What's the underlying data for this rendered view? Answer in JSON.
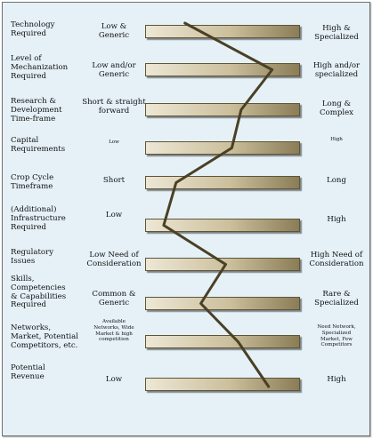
{
  "rows": [
    {
      "category": "Technology\nRequired",
      "low": "Low &\nGeneric",
      "high": "High &\nSpecialized",
      "level": 0.28
    },
    {
      "category": "Level of\nMechanization\nRequired",
      "low": "Low and/or\nGeneric",
      "high": "High and/or\nspecialized",
      "level": 0.82
    },
    {
      "category": "Research &\nDevelopment\nTime-frame",
      "low": "Short & straight\nforward",
      "high": "Long &\nComplex",
      "level": 0.62
    },
    {
      "category": "Capital\nRequirements",
      "low": "Low",
      "high": "High",
      "level": 0.56
    },
    {
      "category": "Crop Cycle\nTimeframe",
      "low": "Short",
      "high": "Long",
      "level": 0.2
    },
    {
      "category": "(Additional)\nInfrastructure\nRequired",
      "low": "Low",
      "high": "High",
      "level": 0.12
    },
    {
      "category": "Regulatory\nIssues",
      "low": "Low Need of\nConsideration",
      "high": "High Need of\nConsideration",
      "level": 0.52
    },
    {
      "category": "Skills,\nCompetencies\n& Capabilities\nRequired",
      "low": "Common &\nGeneric",
      "high": "Rare &\nSpecialized",
      "level": 0.36
    },
    {
      "category": "Networks,\nMarket, Potential\nCompetitors, etc.",
      "low": "Available\nNetworks, Wide\nMarket & high\ncompetition",
      "high": "Need Network,\nSpecialized\nMarket, Few\nCompetitors",
      "level": 0.6
    },
    {
      "category": "Potential\nRevenue",
      "low": "Low",
      "high": "High",
      "level": 0.78
    }
  ],
  "colors": {
    "line": "#4a4025",
    "background": "#e5f1f7"
  }
}
